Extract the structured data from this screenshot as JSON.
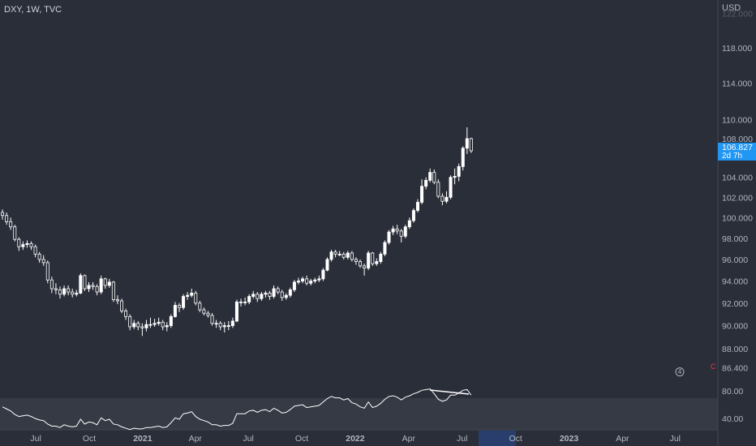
{
  "chart_data": {
    "type": "candlestick",
    "title": "DXY, 1W, TVC",
    "currency": "USD",
    "log_scale": true,
    "ylim": [
      84.82,
      123.73
    ],
    "xlim": [
      -0.6,
      174
    ],
    "yticks": [
      {
        "value": 122,
        "label": "122.000"
      },
      {
        "value": 118,
        "label": "118.000"
      },
      {
        "value": 114,
        "label": "114.000"
      },
      {
        "value": 110,
        "label": "110.000"
      },
      {
        "value": 108,
        "label": "108.000"
      },
      {
        "value": 104,
        "label": "104.000"
      },
      {
        "value": 102,
        "label": "102.000"
      },
      {
        "value": 100,
        "label": "100.000"
      },
      {
        "value": 98,
        "label": "98.000"
      },
      {
        "value": 96,
        "label": "96.000"
      },
      {
        "value": 94,
        "label": "94.000"
      },
      {
        "value": 92,
        "label": "92.000"
      },
      {
        "value": 90,
        "label": "90.000"
      },
      {
        "value": 88,
        "label": "88.000"
      }
    ],
    "xticks": [
      {
        "value": 8.1,
        "label": "Jul"
      },
      {
        "value": 21.1,
        "label": "Oct"
      },
      {
        "value": 34.1,
        "label": "2021"
      },
      {
        "value": 46.9,
        "label": "Apr"
      },
      {
        "value": 59.8,
        "label": "Jul"
      },
      {
        "value": 72.8,
        "label": "Oct"
      },
      {
        "value": 85.8,
        "label": "2022"
      },
      {
        "value": 98.8,
        "label": "Apr"
      },
      {
        "value": 111.8,
        "label": "Jul"
      },
      {
        "value": 124.8,
        "label": "Oct"
      },
      {
        "value": 137.8,
        "label": "2023"
      },
      {
        "value": 150.8,
        "label": "Apr"
      },
      {
        "value": 163.6,
        "label": "Jul"
      }
    ],
    "up_color": "#ffffff",
    "down_color": "#2a2e39",
    "candles": [
      [
        100.6,
        100.9,
        99.9,
        100.3
      ],
      [
        100.3,
        100.6,
        99.4,
        99.7
      ],
      [
        99.7,
        100.1,
        98.9,
        99.2
      ],
      [
        99.2,
        99.4,
        97.8,
        98.0
      ],
      [
        98.0,
        98.2,
        96.9,
        97.3
      ],
      [
        97.3,
        97.8,
        97.0,
        97.5
      ],
      [
        97.5,
        97.9,
        97.2,
        97.6
      ],
      [
        97.6,
        97.8,
        97.0,
        97.3
      ],
      [
        97.3,
        97.5,
        96.3,
        96.6
      ],
      [
        96.6,
        96.8,
        95.8,
        96.1
      ],
      [
        96.1,
        96.5,
        95.5,
        95.8
      ],
      [
        95.8,
        96.0,
        93.9,
        94.2
      ],
      [
        94.2,
        94.5,
        93.0,
        93.4
      ],
      [
        93.4,
        93.9,
        92.9,
        93.3
      ],
      [
        93.3,
        93.6,
        92.5,
        92.9
      ],
      [
        92.9,
        93.7,
        92.7,
        93.4
      ],
      [
        93.4,
        93.7,
        92.8,
        93.1
      ],
      [
        93.1,
        93.4,
        92.6,
        92.9
      ],
      [
        92.9,
        93.3,
        92.7,
        93.0
      ],
      [
        93.0,
        94.8,
        92.9,
        94.6
      ],
      [
        94.6,
        94.7,
        93.2,
        93.4
      ],
      [
        93.4,
        94.0,
        93.1,
        93.7
      ],
      [
        93.7,
        94.0,
        93.3,
        93.6
      ],
      [
        93.6,
        93.8,
        92.8,
        93.1
      ],
      [
        93.1,
        94.6,
        92.9,
        94.3
      ],
      [
        94.3,
        94.4,
        93.4,
        93.7
      ],
      [
        93.7,
        94.3,
        93.5,
        94.0
      ],
      [
        94.0,
        94.1,
        92.2,
        92.4
      ],
      [
        92.4,
        92.8,
        92.0,
        92.3
      ],
      [
        92.3,
        92.5,
        91.2,
        91.4
      ],
      [
        91.4,
        91.6,
        90.6,
        90.9
      ],
      [
        90.9,
        91.1,
        89.7,
        90.0
      ],
      [
        90.0,
        90.6,
        89.8,
        90.3
      ],
      [
        90.3,
        90.5,
        89.7,
        90.0
      ],
      [
        90.0,
        90.3,
        89.2,
        89.9
      ],
      [
        89.9,
        90.6,
        89.6,
        90.2
      ],
      [
        90.2,
        90.8,
        89.9,
        90.2
      ],
      [
        90.2,
        90.7,
        90.0,
        90.3
      ],
      [
        90.3,
        90.8,
        90.1,
        90.4
      ],
      [
        90.4,
        90.6,
        89.7,
        90.0
      ],
      [
        90.0,
        90.4,
        89.6,
        90.1
      ],
      [
        90.1,
        91.1,
        89.9,
        90.9
      ],
      [
        90.9,
        92.2,
        90.8,
        91.9
      ],
      [
        91.9,
        92.1,
        91.3,
        91.7
      ],
      [
        91.7,
        92.9,
        91.5,
        92.7
      ],
      [
        92.7,
        93.1,
        92.4,
        92.8
      ],
      [
        92.8,
        93.4,
        92.6,
        93.0
      ],
      [
        93.0,
        93.2,
        91.9,
        92.1
      ],
      [
        92.1,
        92.3,
        91.3,
        91.5
      ],
      [
        91.5,
        91.7,
        91.0,
        91.2
      ],
      [
        91.2,
        91.4,
        90.8,
        91.0
      ],
      [
        91.0,
        91.2,
        90.1,
        90.3
      ],
      [
        90.3,
        90.6,
        89.9,
        90.3
      ],
      [
        90.3,
        90.5,
        89.7,
        90.0
      ],
      [
        90.0,
        90.4,
        89.5,
        90.1
      ],
      [
        90.1,
        90.5,
        89.7,
        90.1
      ],
      [
        90.1,
        90.8,
        89.9,
        90.5
      ],
      [
        90.5,
        92.4,
        90.4,
        92.2
      ],
      [
        92.2,
        92.5,
        91.8,
        92.2
      ],
      [
        92.2,
        92.6,
        91.9,
        92.2
      ],
      [
        92.2,
        92.9,
        92.0,
        92.7
      ],
      [
        92.7,
        93.2,
        92.5,
        92.9
      ],
      [
        92.9,
        93.1,
        92.2,
        92.5
      ],
      [
        92.5,
        93.1,
        92.3,
        92.9
      ],
      [
        92.9,
        93.2,
        92.6,
        93.0
      ],
      [
        93.0,
        93.2,
        92.4,
        92.7
      ],
      [
        92.7,
        93.7,
        92.5,
        93.4
      ],
      [
        93.4,
        93.6,
        92.9,
        93.1
      ],
      [
        93.1,
        93.3,
        92.3,
        92.6
      ],
      [
        92.6,
        93.0,
        92.4,
        92.8
      ],
      [
        92.8,
        93.5,
        92.6,
        93.3
      ],
      [
        93.3,
        94.2,
        93.1,
        94.0
      ],
      [
        94.0,
        94.4,
        93.8,
        94.1
      ],
      [
        94.1,
        94.5,
        93.9,
        94.3
      ],
      [
        94.3,
        94.6,
        93.7,
        93.9
      ],
      [
        93.9,
        94.3,
        93.7,
        94.1
      ],
      [
        94.1,
        94.4,
        93.9,
        94.2
      ],
      [
        94.2,
        94.6,
        94.0,
        94.3
      ],
      [
        94.3,
        95.3,
        94.1,
        95.1
      ],
      [
        95.1,
        96.3,
        95.0,
        96.1
      ],
      [
        96.1,
        97.0,
        95.9,
        96.8
      ],
      [
        96.8,
        97.0,
        96.3,
        96.6
      ],
      [
        96.6,
        96.9,
        96.4,
        96.6
      ],
      [
        96.6,
        96.8,
        96.1,
        96.3
      ],
      [
        96.3,
        96.9,
        96.1,
        96.7
      ],
      [
        96.7,
        96.9,
        95.9,
        96.1
      ],
      [
        96.1,
        96.3,
        95.6,
        95.9
      ],
      [
        95.9,
        96.1,
        95.3,
        95.5
      ],
      [
        95.5,
        95.7,
        94.6,
        95.3
      ],
      [
        95.3,
        96.9,
        95.1,
        96.7
      ],
      [
        96.7,
        96.8,
        95.5,
        95.7
      ],
      [
        95.7,
        96.2,
        95.5,
        95.9
      ],
      [
        95.9,
        96.8,
        95.7,
        96.6
      ],
      [
        96.6,
        97.9,
        96.4,
        97.7
      ],
      [
        97.7,
        98.9,
        97.5,
        98.7
      ],
      [
        98.7,
        99.3,
        98.4,
        99.0
      ],
      [
        99.0,
        99.4,
        98.5,
        98.8
      ],
      [
        98.8,
        99.0,
        97.7,
        98.3
      ],
      [
        98.3,
        99.4,
        98.1,
        99.2
      ],
      [
        99.2,
        100.1,
        99.0,
        99.8
      ],
      [
        99.8,
        101.0,
        99.6,
        100.8
      ],
      [
        100.8,
        101.9,
        100.6,
        101.6
      ],
      [
        101.6,
        103.9,
        101.4,
        103.2
      ],
      [
        103.2,
        104.1,
        102.9,
        103.8
      ],
      [
        103.8,
        105.0,
        103.6,
        104.6
      ],
      [
        104.6,
        104.9,
        103.4,
        103.6
      ],
      [
        103.6,
        103.9,
        102.0,
        102.2
      ],
      [
        102.2,
        102.5,
        101.3,
        101.7
      ],
      [
        101.7,
        102.7,
        101.5,
        102.1
      ],
      [
        102.1,
        104.3,
        101.9,
        104.1
      ],
      [
        104.1,
        105.0,
        103.4,
        104.2
      ],
      [
        104.2,
        105.5,
        103.7,
        105.2
      ],
      [
        105.2,
        107.3,
        104.8,
        107.1
      ],
      [
        107.1,
        109.3,
        106.5,
        108.1
      ],
      [
        108.1,
        108.2,
        106.6,
        106.827
      ]
    ],
    "countdown": "2d 7h",
    "marker": {
      "value": 86.4,
      "label": "86.400",
      "text": "C",
      "badge": "4"
    },
    "rsi": {
      "ylim": [
        24.7,
        85.9
      ],
      "yticks": [
        {
          "value": 80,
          "label": "80.00"
        },
        {
          "value": 40,
          "label": "40.00"
        }
      ],
      "values": [
        58,
        55,
        52,
        47,
        44,
        45,
        46,
        44,
        41,
        39,
        38,
        33,
        30,
        30,
        28,
        32,
        30,
        29,
        30,
        40,
        33,
        36,
        35,
        32,
        42,
        38,
        40,
        33,
        32,
        29,
        27,
        25,
        27,
        26,
        26,
        28,
        28,
        29,
        30,
        28,
        29,
        35,
        42,
        40,
        48,
        49,
        51,
        44,
        40,
        38,
        36,
        32,
        32,
        30,
        31,
        31,
        34,
        48,
        48,
        48,
        52,
        53,
        50,
        53,
        54,
        51,
        56,
        53,
        49,
        50,
        54,
        59,
        60,
        61,
        57,
        58,
        59,
        60,
        65,
        70,
        73,
        71,
        71,
        68,
        70,
        64,
        62,
        58,
        56,
        65,
        57,
        59,
        63,
        69,
        73,
        74,
        72,
        68,
        72,
        74,
        77,
        79,
        82,
        83,
        84,
        77,
        69,
        66,
        68,
        75,
        75,
        78,
        82,
        83,
        75
      ]
    }
  }
}
